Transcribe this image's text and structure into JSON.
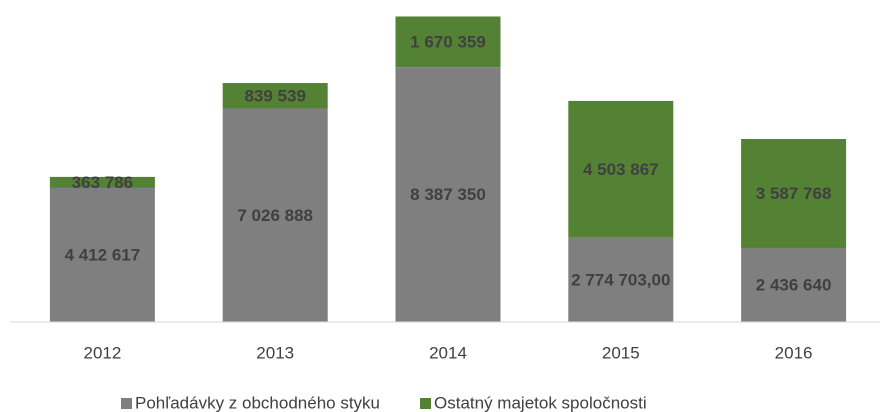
{
  "chart_data": {
    "type": "stacked_bar",
    "categories": [
      "2012",
      "2013",
      "2014",
      "2015",
      "2016"
    ],
    "series": [
      {
        "name": "Pohľadávky z obchodného styku",
        "color": "#7f7f7f",
        "values": [
          4412617,
          7026888,
          8387350,
          2774703,
          2436640
        ],
        "value_labels": [
          "4 412 617",
          "7 026 888",
          "8 387 350",
          "2 774 703,00",
          "2 436 640"
        ]
      },
      {
        "name": "Ostatný majetok spoločnosti",
        "color": "#548235",
        "values": [
          363786,
          839539,
          1670359,
          4503867,
          3587768
        ],
        "value_labels": [
          "363 786",
          "839 539",
          "1 670 359",
          "4 503 867",
          "3 587 768"
        ]
      }
    ],
    "ylim": [
      0,
      10600000
    ]
  }
}
